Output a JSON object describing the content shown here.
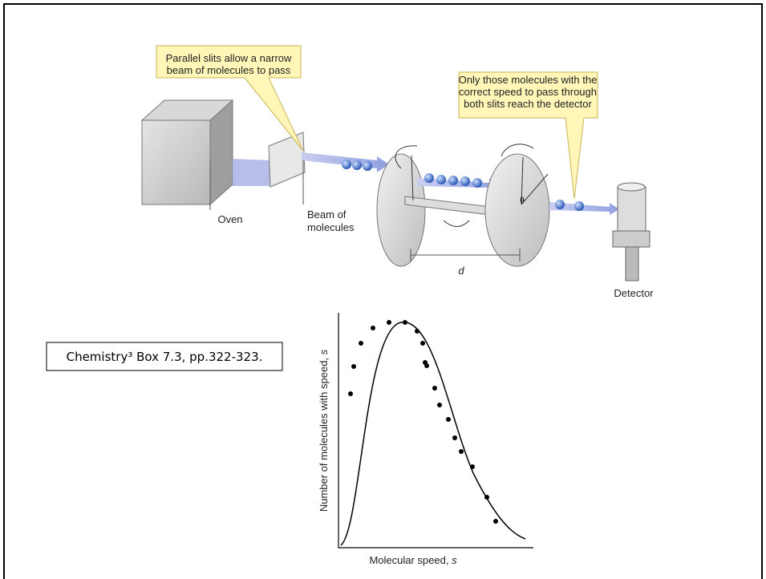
{
  "apparatus": {
    "callout_slits": [
      "Parallel slits allow a narrow",
      "beam of molecules to pass"
    ],
    "callout_detector": [
      "Only those molecules with the",
      "correct speed to pass through",
      "both slits reach the detector"
    ],
    "oven": "Oven",
    "beam": [
      "Beam of",
      "molecules"
    ],
    "distance": "d",
    "angle": "θ",
    "detector": "Detector"
  },
  "citation": "Chemistry³ Box 7.3, pp.322-323.",
  "graph": {
    "y_label": {
      "text": "Number of molecules with speed,",
      "variable": "s"
    },
    "x_label": {
      "text": "Molecular speed,",
      "variable": "s"
    }
  }
}
